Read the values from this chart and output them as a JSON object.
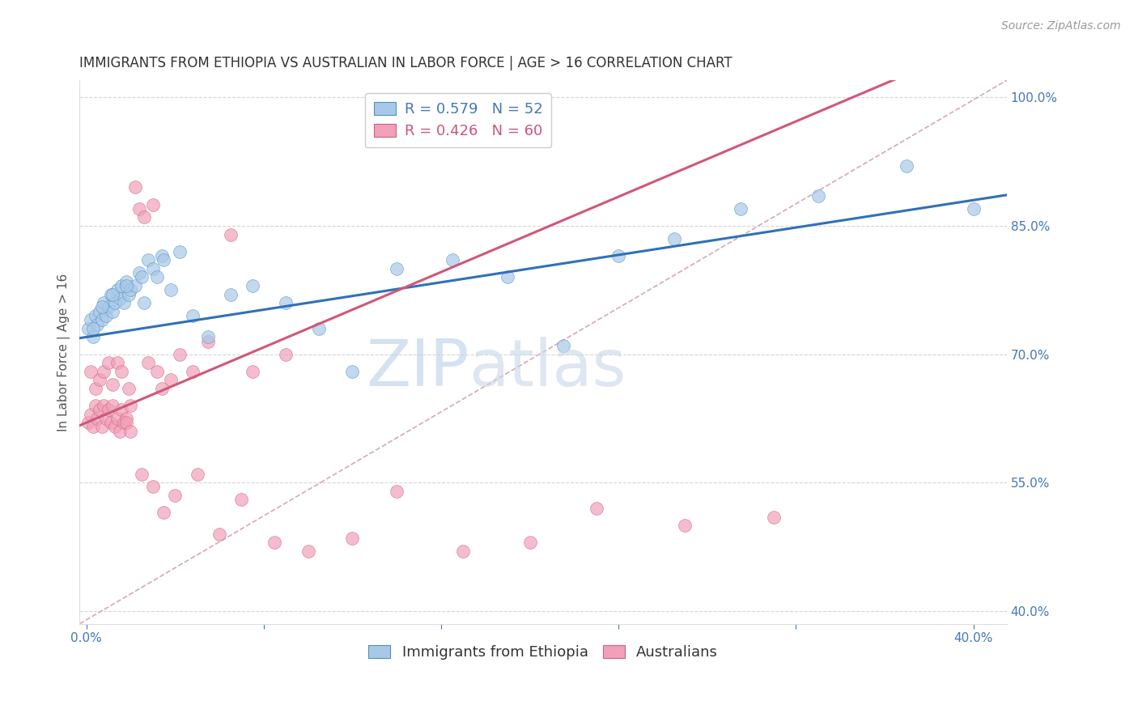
{
  "title": "IMMIGRANTS FROM ETHIOPIA VS AUSTRALIAN IN LABOR FORCE | AGE > 16 CORRELATION CHART",
  "source": "Source: ZipAtlas.com",
  "ylabel": "In Labor Force | Age > 16",
  "right_yticks": [
    0.4,
    0.55,
    0.7,
    0.85,
    1.0
  ],
  "right_yticklabels": [
    "40.0%",
    "55.0%",
    "70.0%",
    "85.0%",
    "100.0%"
  ],
  "xmin": -0.003,
  "xmax": 0.415,
  "ymin": 0.385,
  "ymax": 1.02,
  "watermark_zip": "ZIP",
  "watermark_atlas": "atlas",
  "watermark_color_zip": "#b8d0e8",
  "watermark_color_atlas": "#c8d8e8",
  "blue_series_name": "Immigrants from Ethiopia",
  "blue_R": "0.579",
  "blue_N": "52",
  "blue_color": "#a8c8e8",
  "blue_edge_color": "#5090c0",
  "pink_series_name": "Australians",
  "pink_R": "0.426",
  "pink_N": "60",
  "pink_color": "#f0a0b8",
  "pink_edge_color": "#d06080",
  "blue_line_color": "#3070b8",
  "pink_line_color": "#d05878",
  "ref_line_color": "#d0a0b0",
  "blue_intercept": 0.72,
  "blue_slope": 0.4,
  "pink_intercept": 0.62,
  "pink_slope": 1.1,
  "title_fontsize": 12,
  "axis_label_fontsize": 11,
  "tick_fontsize": 11,
  "legend_fontsize": 13,
  "source_fontsize": 10,
  "background_color": "#ffffff",
  "grid_color": "#cccccc",
  "blue_x": [
    0.001,
    0.002,
    0.003,
    0.004,
    0.005,
    0.006,
    0.007,
    0.008,
    0.009,
    0.01,
    0.011,
    0.012,
    0.013,
    0.014,
    0.015,
    0.016,
    0.017,
    0.018,
    0.019,
    0.02,
    0.022,
    0.024,
    0.026,
    0.028,
    0.03,
    0.032,
    0.034,
    0.038,
    0.042,
    0.048,
    0.055,
    0.065,
    0.075,
    0.09,
    0.105,
    0.12,
    0.14,
    0.165,
    0.19,
    0.215,
    0.24,
    0.265,
    0.295,
    0.33,
    0.37,
    0.4,
    0.003,
    0.007,
    0.012,
    0.018,
    0.025,
    0.035
  ],
  "blue_y": [
    0.73,
    0.74,
    0.72,
    0.745,
    0.735,
    0.75,
    0.74,
    0.76,
    0.745,
    0.755,
    0.77,
    0.75,
    0.76,
    0.775,
    0.765,
    0.78,
    0.76,
    0.785,
    0.77,
    0.775,
    0.78,
    0.795,
    0.76,
    0.81,
    0.8,
    0.79,
    0.815,
    0.775,
    0.82,
    0.745,
    0.72,
    0.77,
    0.78,
    0.76,
    0.73,
    0.68,
    0.8,
    0.81,
    0.79,
    0.71,
    0.815,
    0.835,
    0.87,
    0.885,
    0.92,
    0.87,
    0.73,
    0.755,
    0.77,
    0.78,
    0.79,
    0.81
  ],
  "pink_x": [
    0.001,
    0.002,
    0.003,
    0.004,
    0.005,
    0.006,
    0.007,
    0.008,
    0.009,
    0.01,
    0.011,
    0.012,
    0.013,
    0.014,
    0.015,
    0.016,
    0.017,
    0.018,
    0.019,
    0.02,
    0.022,
    0.024,
    0.026,
    0.028,
    0.03,
    0.032,
    0.034,
    0.038,
    0.042,
    0.048,
    0.055,
    0.065,
    0.075,
    0.09,
    0.002,
    0.004,
    0.006,
    0.008,
    0.01,
    0.012,
    0.014,
    0.016,
    0.018,
    0.02,
    0.025,
    0.03,
    0.035,
    0.04,
    0.05,
    0.06,
    0.07,
    0.085,
    0.1,
    0.12,
    0.14,
    0.17,
    0.2,
    0.23,
    0.27,
    0.31
  ],
  "pink_y": [
    0.62,
    0.63,
    0.615,
    0.64,
    0.625,
    0.635,
    0.615,
    0.64,
    0.625,
    0.635,
    0.62,
    0.64,
    0.615,
    0.625,
    0.61,
    0.635,
    0.62,
    0.625,
    0.66,
    0.64,
    0.895,
    0.87,
    0.86,
    0.69,
    0.875,
    0.68,
    0.66,
    0.67,
    0.7,
    0.68,
    0.715,
    0.84,
    0.68,
    0.7,
    0.68,
    0.66,
    0.67,
    0.68,
    0.69,
    0.665,
    0.69,
    0.68,
    0.62,
    0.61,
    0.56,
    0.545,
    0.515,
    0.535,
    0.56,
    0.49,
    0.53,
    0.48,
    0.47,
    0.485,
    0.54,
    0.47,
    0.48,
    0.52,
    0.5,
    0.51
  ]
}
